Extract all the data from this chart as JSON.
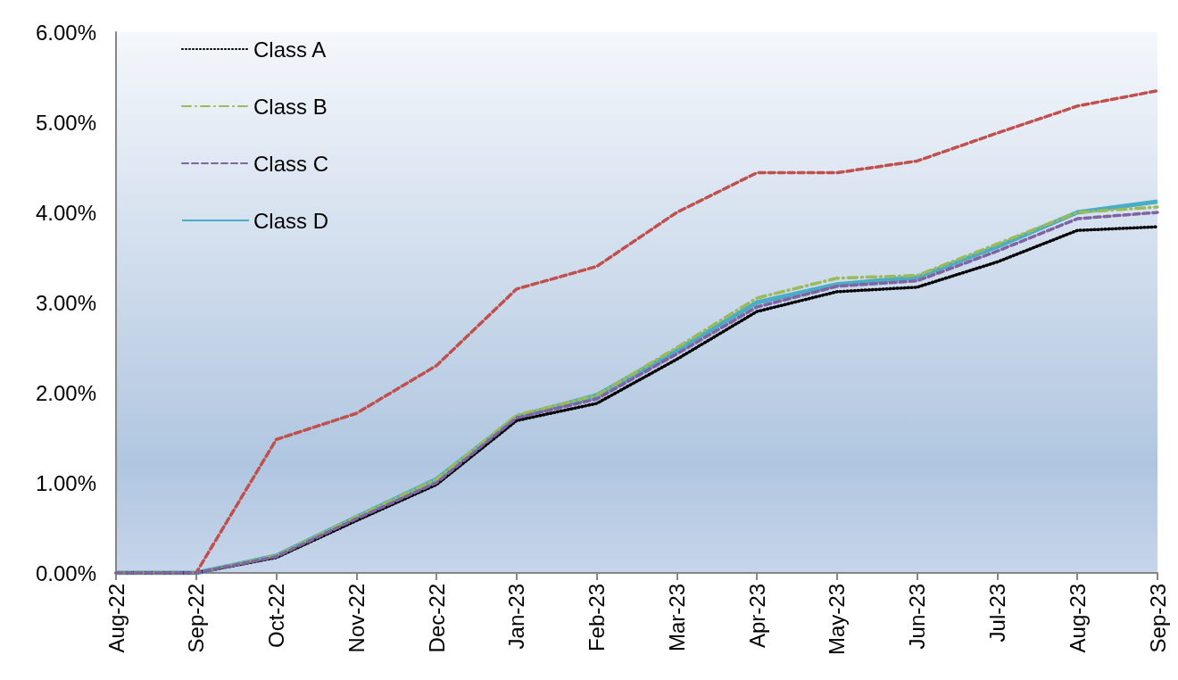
{
  "chart_data": {
    "type": "line",
    "categories": [
      "Aug-22",
      "Sep-22",
      "Oct-22",
      "Nov-22",
      "Dec-22",
      "Jan-23",
      "Feb-23",
      "Mar-23",
      "Apr-23",
      "May-23",
      "Jun-23",
      "Jul-23",
      "Aug-23",
      "Sep-23"
    ],
    "series": [
      {
        "color": "#c0504d",
        "line_style": "dashed",
        "values": [
          0,
          0,
          1.48,
          1.77,
          2.3,
          3.15,
          3.4,
          4.0,
          4.44,
          4.44,
          4.57,
          4.88,
          5.18,
          5.35
        ]
      },
      {
        "name": "Class A",
        "color": "#000000",
        "line_style": "dotted",
        "values": [
          0,
          0,
          0.17,
          0.58,
          0.98,
          1.69,
          1.88,
          2.37,
          2.9,
          3.12,
          3.17,
          3.45,
          3.8,
          3.84
        ]
      },
      {
        "name": "Class B",
        "color": "#9bbb59",
        "line_style": "dashdot",
        "values": [
          0,
          0,
          0.19,
          0.62,
          1.04,
          1.75,
          1.97,
          2.5,
          3.05,
          3.27,
          3.3,
          3.65,
          4.0,
          4.06
        ]
      },
      {
        "name": "Class C",
        "color": "#8064a2",
        "line_style": "dashed",
        "values": [
          0,
          0,
          0.18,
          0.6,
          1.0,
          1.72,
          1.93,
          2.43,
          2.95,
          3.18,
          3.24,
          3.57,
          3.93,
          4.0
        ]
      },
      {
        "name": "Class D",
        "color": "#4bacc6",
        "line_style": "solid",
        "values": [
          0,
          0,
          0.19,
          0.62,
          1.04,
          1.73,
          1.97,
          2.47,
          3.0,
          3.2,
          3.28,
          3.62,
          4.0,
          4.12
        ]
      }
    ],
    "ylim": [
      0,
      6
    ],
    "yticks": [
      {
        "value": 0,
        "label": "0.00%"
      },
      {
        "value": 1,
        "label": "1.00%"
      },
      {
        "value": 2,
        "label": "2.00%"
      },
      {
        "value": 3,
        "label": "3.00%"
      },
      {
        "value": 4,
        "label": "4.00%"
      },
      {
        "value": 5,
        "label": "5.00%"
      },
      {
        "value": 6,
        "label": "6.00%"
      }
    ],
    "grid": false,
    "legend": "top left",
    "marker": "none"
  }
}
